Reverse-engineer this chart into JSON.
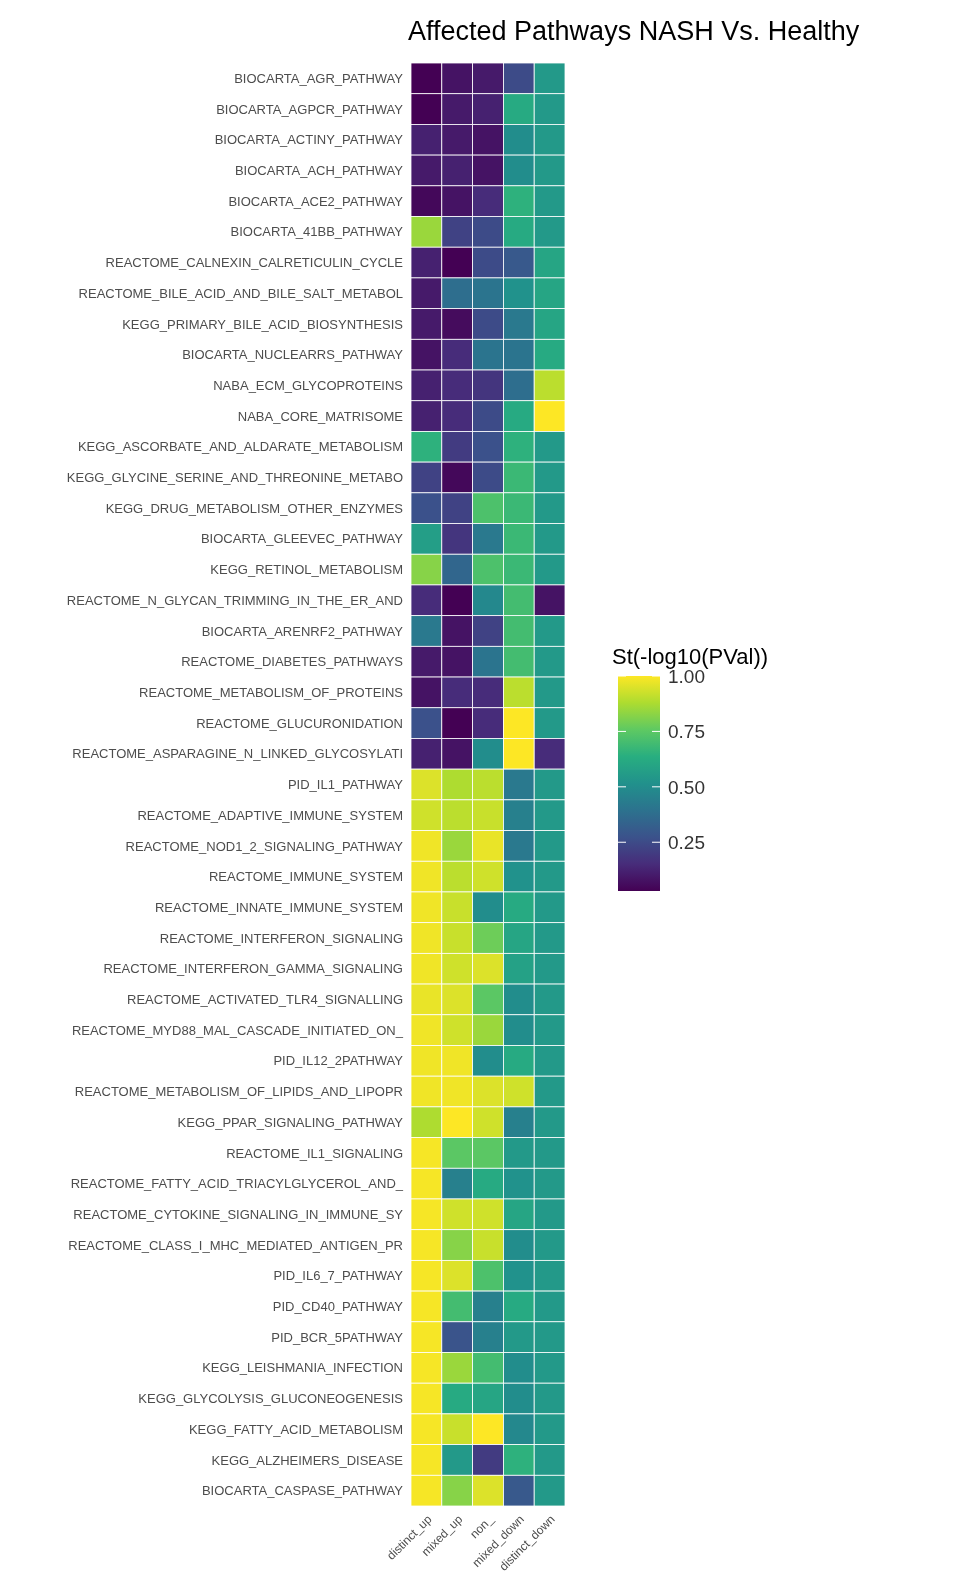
{
  "chart_data": {
    "type": "heatmap",
    "title": "Affected Pathways NASH Vs. Healthy",
    "clabel": "St(-log10(PVal))",
    "categories": [
      "distinct_up",
      "mixed_up",
      "non_",
      "mixed_down",
      "distinct_down"
    ],
    "y_categories": [
      "BIOCARTA_AGR_PATHWAY",
      "BIOCARTA_AGPCR_PATHWAY",
      "BIOCARTA_ACTINY_PATHWAY",
      "BIOCARTA_ACH_PATHWAY",
      "BIOCARTA_ACE2_PATHWAY",
      "BIOCARTA_41BB_PATHWAY",
      "REACTOME_CALNEXIN_CALRETICULIN_CYCLE",
      "REACTOME_BILE_ACID_AND_BILE_SALT_METABOL",
      "KEGG_PRIMARY_BILE_ACID_BIOSYNTHESIS",
      "BIOCARTA_NUCLEARRS_PATHWAY",
      "NABA_ECM_GLYCOPROTEINS",
      "NABA_CORE_MATRISOME",
      "KEGG_ASCORBATE_AND_ALDARATE_METABOLISM",
      "KEGG_GLYCINE_SERINE_AND_THREONINE_METABO",
      "KEGG_DRUG_METABOLISM_OTHER_ENZYMES",
      "BIOCARTA_GLEEVEC_PATHWAY",
      "KEGG_RETINOL_METABOLISM",
      "REACTOME_N_GLYCAN_TRIMMING_IN_THE_ER_AND",
      "BIOCARTA_ARENRF2_PATHWAY",
      "REACTOME_DIABETES_PATHWAYS",
      "REACTOME_METABOLISM_OF_PROTEINS",
      "REACTOME_GLUCURONIDATION",
      "REACTOME_ASPARAGINE_N_LINKED_GLYCOSYLATI",
      "PID_IL1_PATHWAY",
      "REACTOME_ADAPTIVE_IMMUNE_SYSTEM",
      "REACTOME_NOD1_2_SIGNALING_PATHWAY",
      "REACTOME_IMMUNE_SYSTEM",
      "REACTOME_INNATE_IMMUNE_SYSTEM",
      "REACTOME_INTERFERON_SIGNALING",
      "REACTOME_INTERFERON_GAMMA_SIGNALING",
      "REACTOME_ACTIVATED_TLR4_SIGNALLING",
      "REACTOME_MYD88_MAL_CASCADE_INITIATED_ON_",
      "PID_IL12_2PATHWAY",
      "REACTOME_METABOLISM_OF_LIPIDS_AND_LIPOPR",
      "KEGG_PPAR_SIGNALING_PATHWAY",
      "REACTOME_IL1_SIGNALING",
      "REACTOME_FATTY_ACID_TRIACYLGLYCEROL_AND_",
      "REACTOME_CYTOKINE_SIGNALING_IN_IMMUNE_SY",
      "REACTOME_CLASS_I_MHC_MEDIATED_ANTIGEN_PR",
      "PID_IL6_7_PATHWAY",
      "PID_CD40_PATHWAY",
      "PID_BCR_5PATHWAY",
      "KEGG_LEISHMANIA_INFECTION",
      "KEGG_GLYCOLYSIS_GLUCONEOGENESIS",
      "KEGG_FATTY_ACID_METABOLISM",
      "KEGG_ALZHEIMERS_DISEASE",
      "BIOCARTA_CASPASE_PATHWAY"
    ],
    "cells": [
      [
        0.03,
        0.08,
        0.1,
        0.25,
        0.55
      ],
      [
        0.03,
        0.1,
        0.12,
        0.62,
        0.55
      ],
      [
        0.12,
        0.1,
        0.08,
        0.5,
        0.55
      ],
      [
        0.1,
        0.12,
        0.08,
        0.5,
        0.55
      ],
      [
        0.05,
        0.08,
        0.15,
        0.65,
        0.55
      ],
      [
        0.85,
        0.22,
        0.25,
        0.62,
        0.55
      ],
      [
        0.12,
        0.03,
        0.25,
        0.3,
        0.6
      ],
      [
        0.1,
        0.38,
        0.4,
        0.52,
        0.6
      ],
      [
        0.1,
        0.06,
        0.25,
        0.42,
        0.6
      ],
      [
        0.08,
        0.15,
        0.4,
        0.4,
        0.62
      ],
      [
        0.12,
        0.15,
        0.18,
        0.38,
        0.9
      ],
      [
        0.12,
        0.15,
        0.25,
        0.62,
        1.0
      ],
      [
        0.65,
        0.2,
        0.27,
        0.65,
        0.55
      ],
      [
        0.22,
        0.05,
        0.25,
        0.68,
        0.55
      ],
      [
        0.27,
        0.22,
        0.72,
        0.68,
        0.55
      ],
      [
        0.57,
        0.18,
        0.42,
        0.68,
        0.55
      ],
      [
        0.82,
        0.35,
        0.72,
        0.68,
        0.55
      ],
      [
        0.15,
        0.03,
        0.48,
        0.7,
        0.08
      ],
      [
        0.42,
        0.08,
        0.22,
        0.7,
        0.55
      ],
      [
        0.1,
        0.08,
        0.4,
        0.7,
        0.55
      ],
      [
        0.08,
        0.15,
        0.15,
        0.9,
        0.55
      ],
      [
        0.27,
        0.03,
        0.15,
        1.0,
        0.55
      ],
      [
        0.12,
        0.08,
        0.5,
        1.0,
        0.15
      ],
      [
        0.95,
        0.88,
        0.9,
        0.42,
        0.55
      ],
      [
        0.93,
        0.9,
        0.92,
        0.45,
        0.55
      ],
      [
        0.98,
        0.85,
        0.97,
        0.42,
        0.55
      ],
      [
        0.98,
        0.9,
        0.93,
        0.52,
        0.55
      ],
      [
        0.98,
        0.92,
        0.5,
        0.62,
        0.55
      ],
      [
        0.98,
        0.92,
        0.78,
        0.6,
        0.55
      ],
      [
        0.98,
        0.93,
        0.95,
        0.58,
        0.55
      ],
      [
        0.97,
        0.95,
        0.75,
        0.5,
        0.55
      ],
      [
        0.98,
        0.93,
        0.85,
        0.5,
        0.55
      ],
      [
        0.98,
        0.98,
        0.5,
        0.62,
        0.55
      ],
      [
        0.98,
        0.98,
        0.95,
        0.93,
        0.55
      ],
      [
        0.88,
        1.0,
        0.93,
        0.45,
        0.55
      ],
      [
        0.99,
        0.75,
        0.75,
        0.55,
        0.55
      ],
      [
        0.99,
        0.45,
        0.62,
        0.52,
        0.55
      ],
      [
        0.99,
        0.93,
        0.93,
        0.6,
        0.55
      ],
      [
        0.99,
        0.82,
        0.92,
        0.5,
        0.55
      ],
      [
        0.99,
        0.95,
        0.72,
        0.52,
        0.55
      ],
      [
        0.99,
        0.7,
        0.45,
        0.62,
        0.55
      ],
      [
        0.99,
        0.28,
        0.45,
        0.55,
        0.55
      ],
      [
        0.99,
        0.85,
        0.7,
        0.5,
        0.55
      ],
      [
        0.99,
        0.62,
        0.6,
        0.5,
        0.55
      ],
      [
        0.99,
        0.92,
        1.0,
        0.48,
        0.55
      ],
      [
        0.99,
        0.55,
        0.2,
        0.65,
        0.55
      ],
      [
        0.99,
        0.82,
        0.95,
        0.3,
        0.55
      ]
    ],
    "clim": [
      0.03,
      1
    ],
    "cticks": [
      {
        "value": 0.25,
        "label": "0.25"
      },
      {
        "value": 0.5,
        "label": "0.50"
      },
      {
        "value": 0.75,
        "label": "0.75"
      },
      {
        "value": 1,
        "label": "1.00"
      }
    ]
  }
}
